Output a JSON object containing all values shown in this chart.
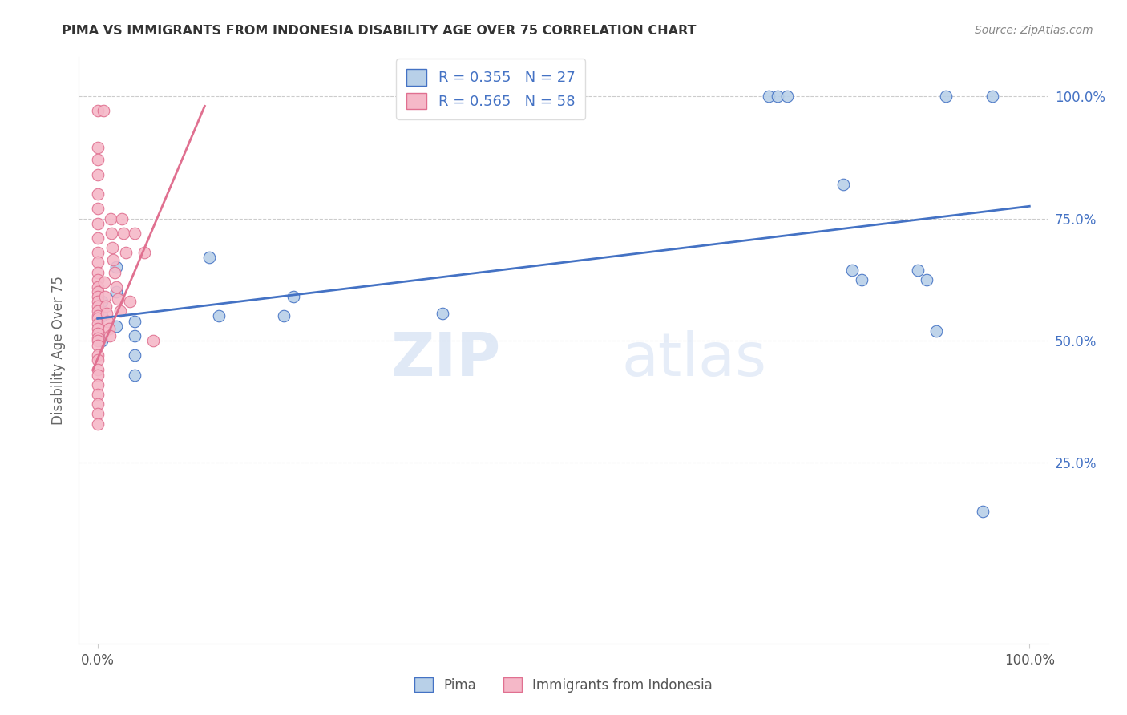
{
  "title": "PIMA VS IMMIGRANTS FROM INDONESIA DISABILITY AGE OVER 75 CORRELATION CHART",
  "source": "Source: ZipAtlas.com",
  "ylabel": "Disability Age Over 75",
  "xlim": [
    -0.02,
    1.02
  ],
  "ylim": [
    -0.12,
    1.08
  ],
  "watermark_zip": "ZIP",
  "watermark_atlas": "atlas",
  "blue_R": 0.355,
  "blue_N": 27,
  "pink_R": 0.565,
  "pink_N": 58,
  "blue_color": "#b8d0e8",
  "pink_color": "#f5b8c8",
  "blue_line_color": "#4472c4",
  "pink_line_color": "#e07090",
  "blue_scatter_x": [
    0.005,
    0.005,
    0.005,
    0.02,
    0.02,
    0.02,
    0.04,
    0.04,
    0.04,
    0.04,
    0.12,
    0.13,
    0.2,
    0.21,
    0.37,
    0.72,
    0.73,
    0.74,
    0.8,
    0.81,
    0.82,
    0.88,
    0.89,
    0.9,
    0.91,
    0.95,
    0.96
  ],
  "blue_scatter_y": [
    0.58,
    0.55,
    0.5,
    0.65,
    0.6,
    0.53,
    0.54,
    0.51,
    0.47,
    0.43,
    0.67,
    0.55,
    0.55,
    0.59,
    0.555,
    1.0,
    1.0,
    1.0,
    0.82,
    0.645,
    0.625,
    0.645,
    0.625,
    0.52,
    1.0,
    0.15,
    1.0
  ],
  "pink_scatter_x": [
    0.0,
    0.0,
    0.0,
    0.0,
    0.0,
    0.0,
    0.0,
    0.0,
    0.0,
    0.0,
    0.0,
    0.0,
    0.0,
    0.0,
    0.0,
    0.0,
    0.0,
    0.0,
    0.0,
    0.0,
    0.0,
    0.0,
    0.0,
    0.0,
    0.0,
    0.0,
    0.0,
    0.0,
    0.0,
    0.0,
    0.0,
    0.0,
    0.0,
    0.0,
    0.0,
    0.006,
    0.007,
    0.008,
    0.009,
    0.01,
    0.011,
    0.012,
    0.013,
    0.014,
    0.015,
    0.016,
    0.017,
    0.018,
    0.02,
    0.022,
    0.024,
    0.026,
    0.028,
    0.03,
    0.035,
    0.04,
    0.05,
    0.06
  ],
  "pink_scatter_y": [
    0.97,
    0.895,
    0.87,
    0.84,
    0.8,
    0.77,
    0.74,
    0.71,
    0.68,
    0.66,
    0.64,
    0.625,
    0.61,
    0.6,
    0.59,
    0.58,
    0.57,
    0.56,
    0.55,
    0.545,
    0.535,
    0.525,
    0.515,
    0.505,
    0.5,
    0.49,
    0.47,
    0.46,
    0.44,
    0.43,
    0.41,
    0.39,
    0.37,
    0.35,
    0.33,
    0.97,
    0.62,
    0.59,
    0.57,
    0.555,
    0.54,
    0.525,
    0.51,
    0.75,
    0.72,
    0.69,
    0.665,
    0.64,
    0.61,
    0.585,
    0.56,
    0.75,
    0.72,
    0.68,
    0.58,
    0.72,
    0.68,
    0.5
  ],
  "legend_label_blue": "Pima",
  "legend_label_pink": "Immigrants from Indonesia",
  "blue_trend_x0": 0.0,
  "blue_trend_x1": 1.0,
  "blue_trend_y0": 0.545,
  "blue_trend_y1": 0.775,
  "pink_trend_x0": -0.005,
  "pink_trend_x1": 0.115,
  "pink_trend_y0": 0.44,
  "pink_trend_y1": 0.98
}
